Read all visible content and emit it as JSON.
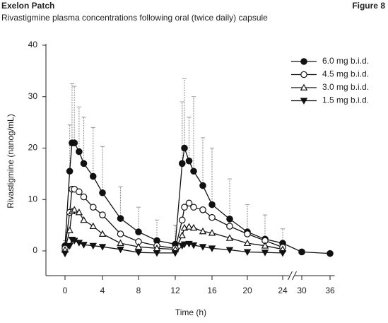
{
  "header": {
    "title": "Exelon Patch",
    "figure": "Figure 8",
    "subtitle": "Rivastigmine plasma concentrations following oral (twice daily) capsule"
  },
  "chart_data": {
    "type": "line",
    "x_label": "Time (h)",
    "y_label": "Rivastigmine (nanog/mL)",
    "xlim": [
      -2,
      37
    ],
    "xticks": [
      0,
      4,
      8,
      12,
      16,
      20,
      24,
      30,
      36
    ],
    "ylim": [
      -5,
      40
    ],
    "yticks": [
      0,
      10,
      20,
      30,
      40
    ],
    "x": [
      0,
      0.5,
      0.75,
      1,
      1.5,
      2,
      3,
      4,
      6,
      8,
      10,
      12,
      12.75,
      13,
      13.5,
      14,
      15,
      16,
      18,
      20,
      22,
      24,
      30,
      36
    ],
    "legend": "upper right",
    "series": [
      {
        "name": "6.0 mg b.i.d.",
        "color": "#111111",
        "marker": "circle-filled",
        "values": [
          1,
          15.5,
          21,
          21,
          19.3,
          17,
          14.5,
          11.3,
          6.3,
          3.7,
          2,
          1.3,
          17,
          20,
          17.5,
          15.5,
          12.7,
          9,
          6.2,
          3.7,
          2.3,
          1.5,
          -0.2,
          -0.5
        ],
        "errors": [
          1,
          9,
          11.5,
          11,
          8.7,
          9,
          9.5,
          9,
          6.2,
          4.8,
          4,
          3.7,
          12,
          13.5,
          8.5,
          14.5,
          9.3,
          11,
          7.8,
          5.3,
          4.7,
          2.8,
          null,
          null
        ]
      },
      {
        "name": "4.5 mg b.i.d.",
        "color": "#111111",
        "marker": "circle-open",
        "values": [
          0.5,
          7.5,
          12,
          12,
          11.5,
          10.5,
          8.5,
          7,
          3.3,
          1.8,
          1,
          0.5,
          6,
          8.5,
          9.3,
          8.5,
          8,
          6.5,
          4.8,
          3.3,
          2,
          0.7,
          null,
          null
        ]
      },
      {
        "name": "3.0 mg b.i.d.",
        "color": "#111111",
        "marker": "triangle-open",
        "values": [
          0.2,
          4,
          7.7,
          8,
          7.5,
          6,
          4.8,
          3.3,
          1.5,
          0.8,
          0.5,
          0.3,
          3,
          4.5,
          4.7,
          4.5,
          3.8,
          3.5,
          2.5,
          1.5,
          1,
          0.3,
          null,
          null
        ]
      },
      {
        "name": "1.5 mg b.i.d.",
        "color": "#111111",
        "marker": "triangle-down-filled",
        "values": [
          -0.5,
          1,
          2.2,
          2,
          1.6,
          1.2,
          1,
          0.8,
          0.3,
          -0.3,
          -0.4,
          -0.4,
          1,
          1.3,
          1.4,
          1.1,
          0.8,
          0.5,
          0.2,
          -0.2,
          -0.3,
          -0.4,
          null,
          null
        ]
      }
    ]
  }
}
